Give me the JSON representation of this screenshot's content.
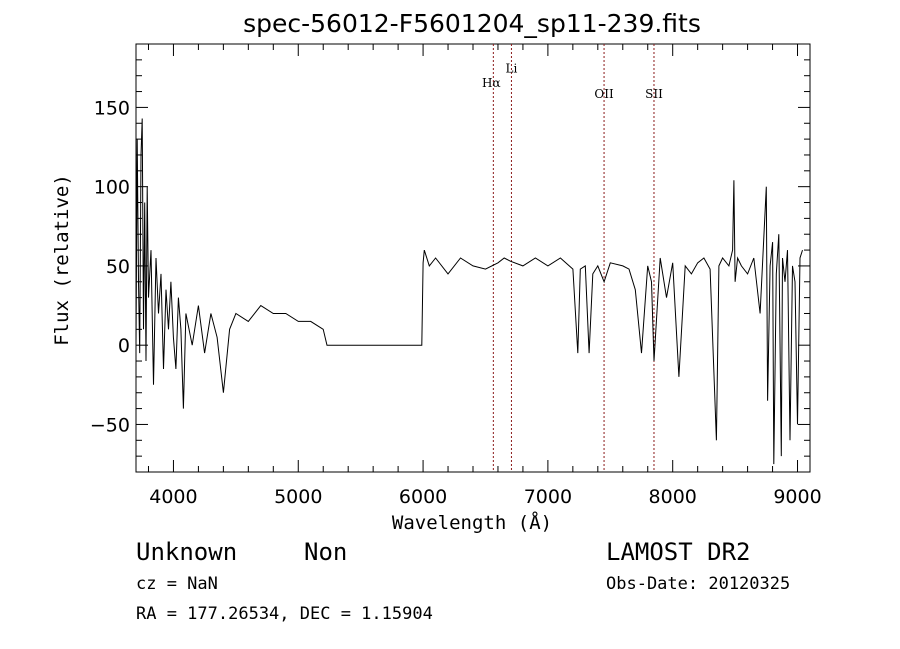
{
  "chart_data": {
    "type": "line",
    "title": "spec-56012-F5601204_sp11-239.fits",
    "xlabel": "Wavelength (Å)",
    "ylabel": "Flux (relative)",
    "xlim": [
      3700,
      9100
    ],
    "ylim": [
      -80,
      190
    ],
    "xticks": [
      4000,
      5000,
      6000,
      7000,
      8000,
      9000
    ],
    "yticks": [
      -50,
      0,
      50,
      100,
      150
    ],
    "grid": false,
    "line_markers": [
      {
        "name": "Hα",
        "wavelength": 6563
      },
      {
        "name": "Li",
        "wavelength": 6708
      },
      {
        "name": "OII",
        "wavelength": 7450
      },
      {
        "name": "SII",
        "wavelength": 7850
      }
    ],
    "series": [
      {
        "x": [
          3700,
          3710,
          3720,
          3730,
          3740,
          3750,
          3760,
          3770,
          3780,
          3790,
          3800,
          3820,
          3840,
          3860,
          3880,
          3900,
          3920,
          3940,
          3960,
          3980,
          4000,
          4020,
          4040,
          4060,
          4080,
          4100,
          4150,
          4200,
          4250,
          4300,
          4350,
          4400,
          4450,
          4500,
          4600,
          4700,
          4800,
          4900,
          5000,
          5100,
          5200,
          5230,
          5240,
          5500,
          5800,
          5990,
          6000,
          6010,
          6050,
          6100,
          6200,
          6300,
          6400,
          6500,
          6600,
          6650,
          6700,
          6800,
          6900,
          7000,
          7100,
          7200,
          7240,
          7260,
          7300,
          7330,
          7360,
          7400,
          7450,
          7500,
          7600,
          7650,
          7700,
          7750,
          7800,
          7830,
          7850,
          7900,
          7950,
          8000,
          8050,
          8100,
          8150,
          8200,
          8250,
          8300,
          8350,
          8370,
          8400,
          8450,
          8480,
          8490,
          8500,
          8520,
          8550,
          8600,
          8650,
          8700,
          8750,
          8760,
          8780,
          8800,
          8810,
          8830,
          8850,
          8870,
          8880,
          8900,
          8920,
          8940,
          8960,
          8980,
          9000,
          9020,
          9040
        ],
        "y": [
          0,
          130,
          40,
          -5,
          120,
          143,
          10,
          90,
          -10,
          100,
          30,
          60,
          -25,
          55,
          20,
          45,
          -15,
          35,
          10,
          40,
          5,
          -15,
          30,
          10,
          -40,
          20,
          0,
          25,
          -5,
          20,
          5,
          -30,
          10,
          20,
          15,
          25,
          20,
          20,
          15,
          15,
          10,
          0,
          0,
          0,
          0,
          0,
          52,
          60,
          50,
          55,
          45,
          55,
          50,
          48,
          52,
          55,
          53,
          50,
          55,
          50,
          55,
          48,
          -5,
          48,
          50,
          -5,
          45,
          50,
          40,
          52,
          50,
          48,
          35,
          -5,
          50,
          40,
          -10,
          55,
          30,
          52,
          -20,
          50,
          45,
          52,
          55,
          48,
          -60,
          50,
          55,
          50,
          60,
          104,
          40,
          55,
          50,
          45,
          55,
          20,
          100,
          -35,
          50,
          65,
          -75,
          45,
          70,
          -70,
          55,
          40,
          60,
          -60,
          50,
          40,
          -50,
          55,
          60
        ]
      }
    ]
  },
  "info": {
    "class_label": "Unknown",
    "subclass_label": "Non",
    "survey_label": "LAMOST DR2",
    "redshift_line": "cz = NaN",
    "obs_date_line": "Obs-Date: 20120325",
    "coords_line": "RA = 177.26534, DEC =    1.15904"
  }
}
